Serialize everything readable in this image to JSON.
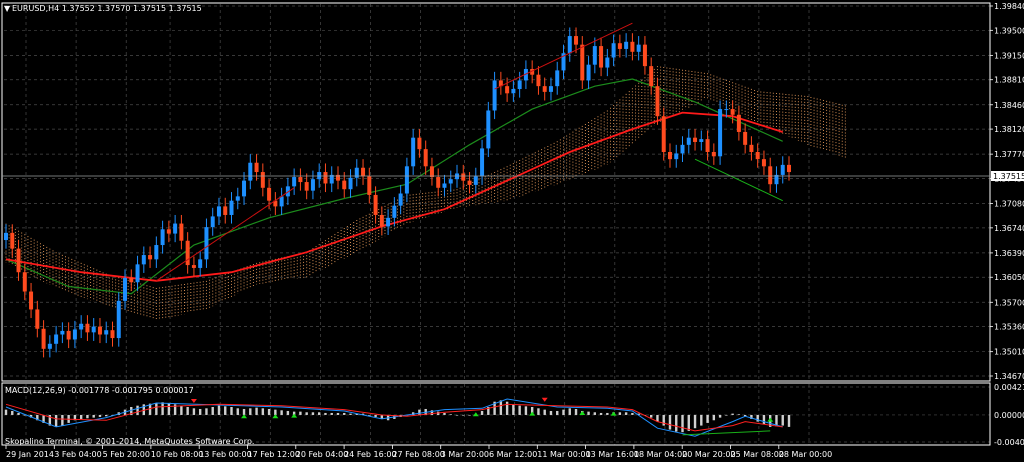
{
  "header": {
    "symbol_line": "EURUSD,H4  1.37552 1.37570 1.37515 1.37515"
  },
  "macd_header": "MACD(12,26,9) -0.001778 -0.001795 0.000017",
  "copyright": "Skopalino Terminal, © 2001-2014, MetaQuotes Software Corp.",
  "price_tag": "1.37515",
  "colors": {
    "background": "#000000",
    "grid": "#4a4a4a",
    "bull": "#1e90ff",
    "bear": "#ff4b1f",
    "ma_slow": "#ff1a1a",
    "ma_fast": "#1c8c1c",
    "cloud_up": "#f4a460",
    "cloud_down": "#d8bfd8",
    "trend_up": "#cc1010",
    "trend_down": "#19b019",
    "macd_hist": "#d0d0d0",
    "macd_line": "#1e90ff",
    "signal_line": "#ff2020",
    "arrow_up": "#19e019",
    "arrow_down": "#ff2020"
  },
  "chart_data": [
    {
      "type": "candlestick",
      "ylabels": [
        "1.39840",
        "1.39500",
        "1.39150",
        "1.38810",
        "1.38460",
        "1.38120",
        "1.37770",
        "1.37430",
        "1.37080",
        "1.36740",
        "1.36390",
        "1.36050",
        "1.35700",
        "1.35360",
        "1.35010",
        "1.34670"
      ],
      "ylim": [
        1.3467,
        1.3984
      ],
      "current_price": 1.37515,
      "xlabels": [
        "29 Jan 2014",
        "3 Feb 04:00",
        "5 Feb 20:00",
        "10 Feb 08:00",
        "13 Feb 00:00",
        "17 Feb 12:00",
        "20 Feb 04:00",
        "24 Feb 16:00",
        "27 Feb 08:00",
        "3 Mar 20:00",
        "6 Mar 12:00",
        "11 Mar 00:00",
        "13 Mar 16:00",
        "18 Mar 04:00",
        "20 Mar 20:00",
        "25 Mar 08:00",
        "28 Mar 00:00"
      ],
      "closes": [
        1.3667,
        1.3645,
        1.3612,
        1.3585,
        1.356,
        1.3533,
        1.3505,
        1.3512,
        1.3525,
        1.353,
        1.3518,
        1.3532,
        1.354,
        1.3528,
        1.3536,
        1.3525,
        1.3531,
        1.352,
        1.3572,
        1.3604,
        1.3598,
        1.3623,
        1.3636,
        1.363,
        1.365,
        1.3672,
        1.3666,
        1.368,
        1.3656,
        1.3622,
        1.3618,
        1.363,
        1.3675,
        1.369,
        1.3704,
        1.3692,
        1.3712,
        1.3718,
        1.374,
        1.3765,
        1.3752,
        1.373,
        1.3712,
        1.3704,
        1.3718,
        1.3732,
        1.3745,
        1.3738,
        1.3726,
        1.3742,
        1.3752,
        1.3736,
        1.3748,
        1.374,
        1.3728,
        1.3744,
        1.3758,
        1.3746,
        1.372,
        1.3692,
        1.3676,
        1.3688,
        1.3705,
        1.3722,
        1.376,
        1.38,
        1.3784,
        1.376,
        1.3745,
        1.373,
        1.3736,
        1.3742,
        1.375,
        1.374,
        1.3734,
        1.3746,
        1.3785,
        1.3838,
        1.388,
        1.3872,
        1.3862,
        1.3868,
        1.388,
        1.3896,
        1.3888,
        1.3872,
        1.3864,
        1.3872,
        1.3894,
        1.3918,
        1.3942,
        1.393,
        1.388,
        1.3902,
        1.3928,
        1.3898,
        1.3912,
        1.3932,
        1.3924,
        1.3934,
        1.392,
        1.393,
        1.39,
        1.3872,
        1.383,
        1.378,
        1.377,
        1.3778,
        1.379,
        1.38,
        1.3794,
        1.3798,
        1.378,
        1.3774,
        1.384,
        1.384,
        1.3832,
        1.3808,
        1.379,
        1.378,
        1.377,
        1.376,
        1.3735,
        1.3748,
        1.3762,
        1.3752
      ],
      "ma_slow": [
        [
          0,
          1.363
        ],
        [
          12,
          1.3612
        ],
        [
          24,
          1.36
        ],
        [
          36,
          1.3612
        ],
        [
          48,
          1.364
        ],
        [
          60,
          1.3676
        ],
        [
          70,
          1.37
        ],
        [
          80,
          1.374
        ],
        [
          90,
          1.378
        ],
        [
          100,
          1.3812
        ],
        [
          108,
          1.3835
        ],
        [
          116,
          1.383
        ],
        [
          124,
          1.3808
        ]
      ],
      "ma_fast": [
        [
          0,
          1.363
        ],
        [
          10,
          1.3592
        ],
        [
          20,
          1.3582
        ],
        [
          30,
          1.365
        ],
        [
          42,
          1.3688
        ],
        [
          54,
          1.3715
        ],
        [
          64,
          1.3735
        ],
        [
          74,
          1.379
        ],
        [
          84,
          1.384
        ],
        [
          94,
          1.3872
        ],
        [
          100,
          1.3882
        ],
        [
          110,
          1.385
        ],
        [
          124,
          1.3795
        ]
      ],
      "cloud": [
        [
          0,
          1.368,
          1.3625
        ],
        [
          8,
          1.364,
          1.359
        ],
        [
          16,
          1.361,
          1.3565
        ],
        [
          24,
          1.359,
          1.3545
        ],
        [
          32,
          1.36,
          1.356
        ],
        [
          40,
          1.3625,
          1.3595
        ],
        [
          48,
          1.364,
          1.3605
        ],
        [
          56,
          1.3685,
          1.364
        ],
        [
          64,
          1.372,
          1.368
        ],
        [
          72,
          1.3728,
          1.3702
        ],
        [
          80,
          1.376,
          1.3712
        ],
        [
          88,
          1.3795,
          1.3735
        ],
        [
          96,
          1.3838,
          1.3762
        ],
        [
          104,
          1.39,
          1.382
        ],
        [
          112,
          1.389,
          1.3855
        ],
        [
          120,
          1.3865,
          1.382
        ],
        [
          128,
          1.3858,
          1.379
        ],
        [
          134,
          1.3845,
          1.3772
        ]
      ],
      "trendlines": [
        {
          "color": "trend_up",
          "from": [
            24,
            1.36
          ],
          "to": [
            46,
            1.373
          ]
        },
        {
          "color": "trend_up",
          "from": [
            78,
            1.3868
          ],
          "to": [
            100,
            1.396
          ]
        },
        {
          "color": "trend_down",
          "from": [
            110,
            1.377
          ],
          "to": [
            124,
            1.3712
          ]
        }
      ],
      "macd": {
        "ylabels": [
          "0.004212",
          "0.000000",
          "-0.004075"
        ],
        "ylim": [
          -0.004075,
          0.004212
        ],
        "hist": [
          0.0008,
          0.0006,
          0.0003,
          0.0,
          -0.0004,
          -0.0008,
          -0.0012,
          -0.0016,
          -0.0018,
          -0.0016,
          -0.0012,
          -0.0008,
          -0.0006,
          -0.0005,
          -0.0004,
          -0.0003,
          -0.0002,
          0.0,
          0.0004,
          0.0008,
          0.0012,
          0.0014,
          0.0016,
          0.0017,
          0.0018,
          0.0019,
          0.0018,
          0.0016,
          0.0014,
          0.0012,
          0.001,
          0.0009,
          0.001,
          0.0012,
          0.0014,
          0.0013,
          0.0012,
          0.001,
          0.0009,
          0.001,
          0.0011,
          0.001,
          0.0009,
          0.0008,
          0.0007,
          0.0006,
          0.0005,
          0.0005,
          0.0004,
          0.0004,
          0.0004,
          0.0003,
          0.0003,
          0.0003,
          0.0003,
          0.0002,
          0.0002,
          0.0002,
          0.0,
          -0.0003,
          -0.0006,
          -0.0008,
          -0.0006,
          -0.0003,
          0.0,
          0.0004,
          0.0008,
          0.0009,
          0.0007,
          0.0005,
          0.0003,
          0.0001,
          0.0,
          0.0,
          0.0,
          0.0001,
          0.0006,
          0.0012,
          0.002,
          0.0022,
          0.002,
          0.0016,
          0.0014,
          0.0013,
          0.0012,
          0.001,
          0.0008,
          0.0006,
          0.0006,
          0.0008,
          0.001,
          0.0009,
          0.0006,
          0.0005,
          0.0004,
          0.0003,
          0.0003,
          0.0004,
          0.0004,
          0.0004,
          0.0003,
          0.0002,
          0.0,
          -0.0004,
          -0.001,
          -0.0016,
          -0.0022,
          -0.0025,
          -0.0026,
          -0.0024,
          -0.002,
          -0.0016,
          -0.0012,
          -0.0008,
          -0.0004,
          0.0,
          0.0002,
          0.0001,
          -0.0002,
          -0.0006,
          -0.001,
          -0.0014,
          -0.0018,
          -0.0017,
          -0.0016,
          -0.0018
        ],
        "macd_line": [
          [
            0,
            0.0012
          ],
          [
            8,
            -0.0018
          ],
          [
            16,
            -0.0004
          ],
          [
            24,
            0.0018
          ],
          [
            34,
            0.0015
          ],
          [
            44,
            0.0012
          ],
          [
            54,
            0.0006
          ],
          [
            60,
            -0.0006
          ],
          [
            64,
            0.0
          ],
          [
            70,
            0.0008
          ],
          [
            76,
            0.001
          ],
          [
            80,
            0.0024
          ],
          [
            88,
            0.0012
          ],
          [
            96,
            0.001
          ],
          [
            100,
            0.0006
          ],
          [
            104,
            -0.002
          ],
          [
            110,
            -0.0032
          ],
          [
            116,
            -0.001
          ],
          [
            118,
            -0.0002
          ],
          [
            124,
            -0.0018
          ]
        ],
        "signal_line": [
          [
            0,
            0.0016
          ],
          [
            8,
            -0.0006
          ],
          [
            16,
            -0.0008
          ],
          [
            24,
            0.0012
          ],
          [
            34,
            0.0016
          ],
          [
            44,
            0.0014
          ],
          [
            54,
            0.0008
          ],
          [
            60,
            0.0
          ],
          [
            64,
            -0.0002
          ],
          [
            70,
            0.0004
          ],
          [
            76,
            0.0008
          ],
          [
            80,
            0.0016
          ],
          [
            88,
            0.0014
          ],
          [
            96,
            0.0012
          ],
          [
            100,
            0.0008
          ],
          [
            104,
            -0.001
          ],
          [
            110,
            -0.0024
          ],
          [
            116,
            -0.0016
          ],
          [
            118,
            -0.001
          ],
          [
            124,
            -0.0018
          ]
        ],
        "arrows_up": [
          [
            38,
            -0.0005
          ],
          [
            43,
            -0.0005
          ],
          [
            46,
            -0.0004
          ],
          [
            75,
            -0.0002
          ],
          [
            84,
            -0.0001
          ],
          [
            92,
            0.0
          ],
          [
            97,
            -0.0001
          ],
          [
            122,
            -0.001
          ]
        ],
        "arrows_down": [
          [
            30,
            0.0024
          ],
          [
            86,
            0.0026
          ]
        ],
        "trendline": {
          "from": [
            108,
            -0.003
          ],
          "to": [
            122,
            -0.0024
          ]
        }
      }
    }
  ]
}
